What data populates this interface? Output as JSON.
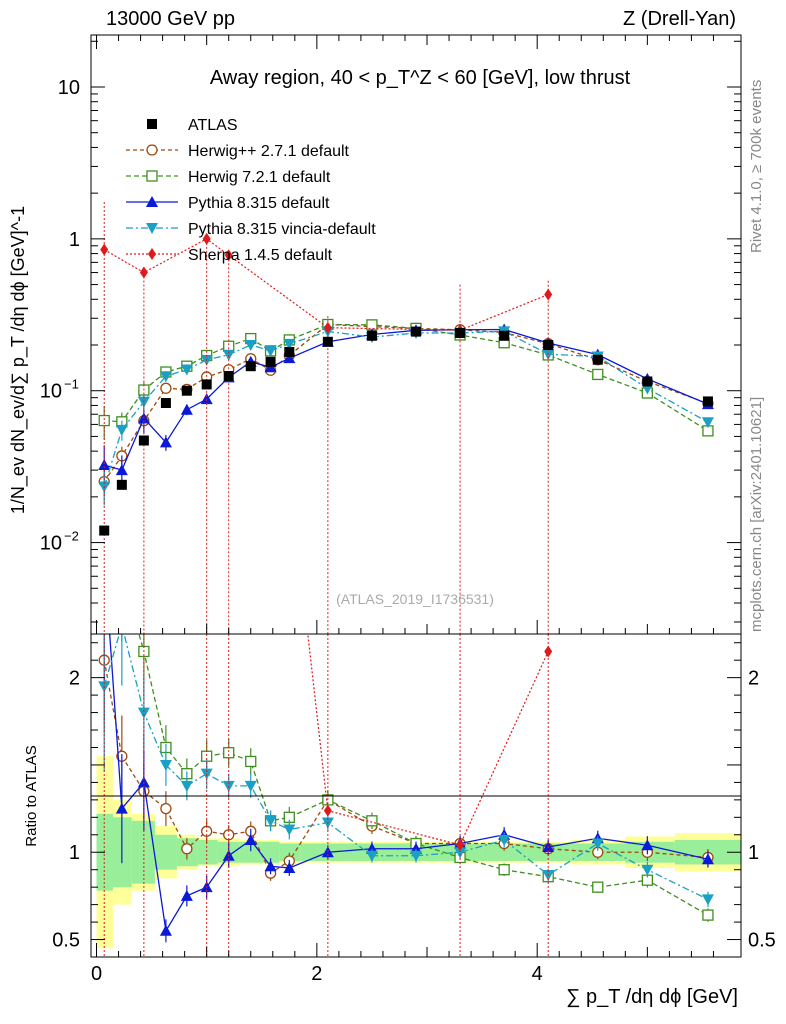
{
  "header": {
    "left": "13000 GeV pp",
    "right": "Z (Drell-Yan)"
  },
  "side_labels": {
    "top": "Rivet 4.1.0, ≥ 700k events",
    "bottom": "mcplots.cern.ch [arXiv:2401.10621]"
  },
  "chart_data": {
    "type": "scatter",
    "title": "Away region, 40 < p_T^Z < 60 [GeV], low thrust",
    "watermark": "(ATLAS_2019_I1736531)",
    "xlabel": "∑ p_T /dη dϕ [GeV]",
    "ylabel": "1/N_ev dN_ev/d∑ p_T /dη dϕ [GeV]^-1",
    "ratio_ylabel": "Ratio to ATLAS",
    "xlim": [
      -0.05,
      5.85
    ],
    "ylim": [
      0.0025,
      22
    ],
    "yscale": "log",
    "ratio_ylim": [
      0.4,
      2.25
    ],
    "x_ticks": [
      0,
      2,
      4
    ],
    "x_tick_labels": [
      "0",
      "2",
      "4"
    ],
    "y_ticks": [
      {
        "value": 10,
        "label": "10"
      },
      {
        "value": 1,
        "label": "1"
      },
      {
        "value": 0.1,
        "label": "10",
        "exp": "−1"
      },
      {
        "value": 0.01,
        "label": "10",
        "exp": "−2"
      }
    ],
    "ratio_ticks": [
      {
        "value": 0.5,
        "label": "0.5"
      },
      {
        "value": 1,
        "label": "1"
      },
      {
        "value": 2,
        "label": "2"
      }
    ],
    "x": [
      0.07,
      0.23,
      0.43,
      0.63,
      0.82,
      1.0,
      1.2,
      1.4,
      1.58,
      1.75,
      2.1,
      2.5,
      2.9,
      3.3,
      3.7,
      4.1,
      4.55,
      5.0,
      5.55
    ],
    "band_edges": [
      0,
      0.15,
      0.32,
      0.53,
      0.73,
      0.92,
      1.1,
      1.3,
      1.5,
      1.66,
      1.85,
      2.3,
      2.7,
      3.1,
      3.5,
      3.9,
      4.3,
      4.8,
      5.25,
      5.85
    ],
    "band_stat": [
      0.22,
      0.2,
      0.18,
      0.1,
      0.08,
      0.07,
      0.06,
      0.06,
      0.06,
      0.05,
      0.05,
      0.05,
      0.05,
      0.05,
      0.05,
      0.05,
      0.05,
      0.06,
      0.07
    ],
    "band_total": [
      0.55,
      0.3,
      0.22,
      0.15,
      0.1,
      0.08,
      0.08,
      0.07,
      0.07,
      0.06,
      0.06,
      0.06,
      0.06,
      0.06,
      0.06,
      0.06,
      0.07,
      0.09,
      0.11
    ],
    "data": {
      "name": "ATLAS",
      "color": "#000000",
      "y": [
        0.012,
        0.024,
        0.047,
        0.083,
        0.1,
        0.11,
        0.125,
        0.145,
        0.155,
        0.18,
        0.21,
        0.23,
        0.245,
        0.24,
        0.23,
        0.2,
        0.16,
        0.115,
        0.085
      ]
    },
    "series": [
      {
        "name": "Herwig++ 2.7.1 default",
        "color": "#9b4a0e",
        "marker": "circle",
        "dash": "4,3",
        "ratio": [
          2.1,
          1.55,
          1.35,
          1.25,
          1.02,
          1.12,
          1.1,
          1.12,
          0.88,
          0.95,
          1.3,
          1.15,
          1.05,
          1.05,
          1.05,
          1.02,
          1.0,
          1.0,
          0.97
        ],
        "err": [
          0.2,
          0.15,
          0.12,
          0.08,
          0.06,
          0.06,
          0.05,
          0.05,
          0.05,
          0.05,
          0.04,
          0.04,
          0.04,
          0.04,
          0.04,
          0.04,
          0.04,
          0.05,
          0.05
        ]
      },
      {
        "name": "Herwig 7.2.1 default",
        "color": "#3f8f1e",
        "marker": "square",
        "dash": "5,3",
        "ratio": [
          5.3,
          2.6,
          2.15,
          1.6,
          1.45,
          1.55,
          1.57,
          1.52,
          1.18,
          1.2,
          1.3,
          1.18,
          1.05,
          0.97,
          0.9,
          0.86,
          0.8,
          0.84,
          0.64
        ],
        "err": [
          0.25,
          0.15,
          0.12,
          0.08,
          0.06,
          0.06,
          0.05,
          0.05,
          0.05,
          0.05,
          0.04,
          0.04,
          0.04,
          0.04,
          0.04,
          0.04,
          0.04,
          0.05,
          0.06
        ]
      },
      {
        "name": "Pythia 8.315 default",
        "color": "#0a1ad6",
        "marker": "triangle-up",
        "dash": "",
        "ratio": [
          2.7,
          1.25,
          1.4,
          0.55,
          0.75,
          0.8,
          0.98,
          1.07,
          0.92,
          0.91,
          1.0,
          1.02,
          1.02,
          1.05,
          1.1,
          1.03,
          1.08,
          1.04,
          0.96
        ],
        "err": [
          0.35,
          0.25,
          0.2,
          0.12,
          0.08,
          0.08,
          0.07,
          0.06,
          0.05,
          0.05,
          0.04,
          0.04,
          0.04,
          0.04,
          0.04,
          0.04,
          0.04,
          0.05,
          0.05
        ]
      },
      {
        "name": "Pythia 8.315 vincia-default",
        "color": "#1aa0c4",
        "marker": "triangle-down",
        "dash": "7,3,2,3",
        "ratio": [
          1.95,
          2.3,
          1.8,
          1.5,
          1.38,
          1.45,
          1.38,
          1.38,
          1.18,
          1.13,
          1.17,
          0.98,
          0.98,
          1.0,
          1.07,
          0.87,
          1.05,
          0.9,
          0.73
        ],
        "err": [
          0.25,
          0.15,
          0.12,
          0.08,
          0.06,
          0.06,
          0.05,
          0.05,
          0.05,
          0.05,
          0.04,
          0.04,
          0.04,
          0.04,
          0.04,
          0.04,
          0.04,
          0.05,
          0.06
        ]
      },
      {
        "name": "Sherpa 1.4.5 default",
        "color": "#e01a1a",
        "marker": "diamond",
        "dash": "2,2",
        "x": [
          0.07,
          0.43,
          1.0,
          1.2,
          2.1,
          3.3,
          4.1
        ],
        "y": [
          0.85,
          0.6,
          1.0,
          0.78,
          0.26,
          0.25,
          0.43
        ],
        "err_lo": [
          0.85,
          0.6,
          1.0,
          0.78,
          0.26,
          0.25,
          0.2
        ],
        "err_hi": [
          0.9,
          0.0,
          0.0,
          0.0,
          0.05,
          0.25,
          0.1
        ]
      }
    ],
    "legend_position": "top-left"
  }
}
